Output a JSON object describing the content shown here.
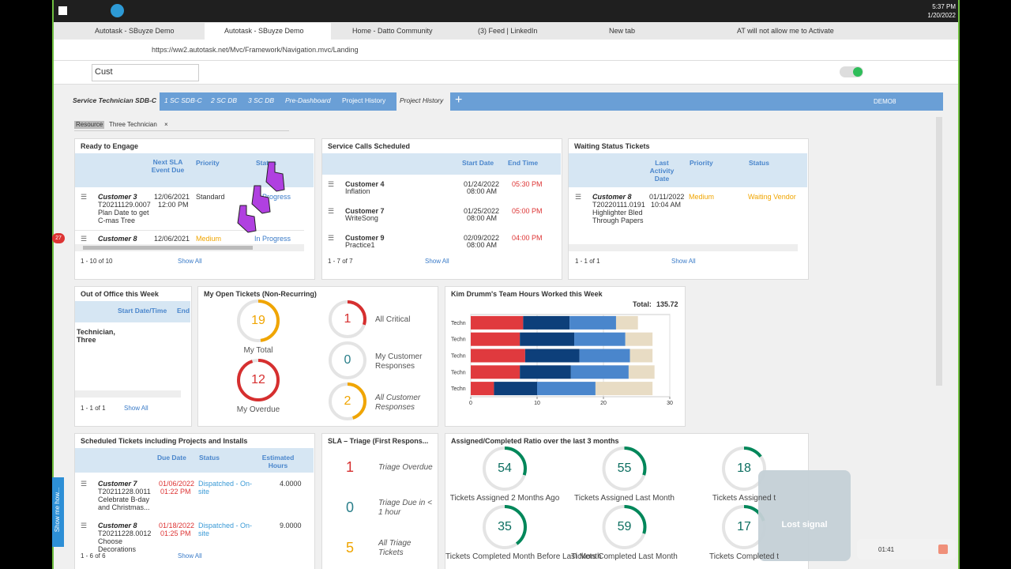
{
  "taskbar": {
    "time": "5:37 PM",
    "date": "1/20/2022"
  },
  "tabs": [
    "Autotask - SBuyze Demo",
    "Autotask - SBuyze Demo",
    "Home - Datto Community",
    "(3) Feed | LinkedIn",
    "New tab",
    "AT will not allow me to Activate"
  ],
  "url": "https://ww2.autotask.net/Mvc/Framework/Navigation.mvc/Landing",
  "search": "Cust",
  "dashboard_tabs": [
    "Service Technician SDB-C",
    "1 SC SDB-C",
    "2 SC DB",
    "3 SC DB",
    "Pre-Dashboard",
    "Project History",
    "Project History"
  ],
  "user": "DEMO8",
  "filter": {
    "label": "Resource",
    "value": "Three Technician"
  },
  "badge": "27",
  "help": "Show me how...",
  "ready": {
    "title": "Ready to Engage",
    "columns": [
      "Next SLA Event Due",
      "Priority",
      "Status"
    ],
    "rows": [
      {
        "customer": "Customer 3",
        "ticket": "T20211129.0007",
        "name": "Plan Date to get C-mas Tree",
        "date": "12/06/2021",
        "time": "12:00 PM",
        "priority": "Standard",
        "status": "In Progress"
      },
      {
        "customer": "Customer 8",
        "date": "12/06/2021",
        "priority": "Medium",
        "status": "In Progress"
      }
    ],
    "count": "1 - 10 of 10",
    "show_all": "Show All"
  },
  "service_calls": {
    "title": "Service Calls Scheduled",
    "columns": [
      "Start Date",
      "End Time"
    ],
    "rows": [
      {
        "customer": "Customer 4",
        "name": "Inflation",
        "date": "01/24/2022",
        "time": "08:00 AM",
        "end": "05:30 PM"
      },
      {
        "customer": "Customer 7",
        "name": "WriteSong",
        "date": "01/25/2022",
        "time": "08:00 AM",
        "end": "05:00 PM"
      },
      {
        "customer": "Customer 9",
        "name": "Practice1",
        "date": "02/09/2022",
        "time": "08:00 AM",
        "end": "04:00 PM"
      }
    ],
    "count": "1 - 7 of 7",
    "show_all": "Show All"
  },
  "waiting": {
    "title": "Waiting Status Tickets",
    "columns": [
      "Last Activity Date",
      "Priority",
      "Status"
    ],
    "rows": [
      {
        "customer": "Customer 8",
        "ticket": "T20220111.0191",
        "name": "Highlighter Bled Through Papers",
        "date": "01/11/2022",
        "time": "10:04 AM",
        "priority": "Medium",
        "status": "Waiting Vendor"
      }
    ],
    "count": "1 - 1 of 1",
    "show_all": "Show All"
  },
  "out_of_office": {
    "title": "Out of Office this Week",
    "columns": [
      "Start Date/Time",
      "End"
    ],
    "rows": [
      "Technician, Three"
    ],
    "count": "1 - 1 of 1",
    "show_all": "Show All"
  },
  "open_tickets": {
    "title": "My Open Tickets (Non-Recurring)",
    "items": [
      {
        "value": "19",
        "label": "My Total"
      },
      {
        "value": "12",
        "label": "My Overdue"
      },
      {
        "value": "1",
        "label": "All Critical"
      },
      {
        "value": "0",
        "label": "My Customer Responses"
      },
      {
        "value": "2",
        "label": "All Customer Responses"
      }
    ]
  },
  "chart_data": {
    "type": "bar",
    "orientation": "horizontal",
    "stacked": true,
    "title": "Kim Drumm's Team Hours Worked this Week",
    "total_label": "Total:",
    "total": 135.72,
    "categories": [
      "Techn",
      "Techn",
      "Techn",
      "Techn",
      "Techn"
    ],
    "series": [
      {
        "color": "#e03a3e",
        "values": [
          7.9,
          7.4,
          8.2,
          7.4,
          3.5
        ]
      },
      {
        "color": "#0d3f7a",
        "values": [
          7.0,
          8.2,
          8.2,
          7.7,
          6.5
        ]
      },
      {
        "color": "#4a86cc",
        "values": [
          7.0,
          7.7,
          7.6,
          8.7,
          8.8
        ]
      },
      {
        "color": "#e8dcc4",
        "values": [
          3.3,
          4.1,
          3.4,
          3.9,
          8.6
        ]
      }
    ],
    "xlim": [
      0,
      30
    ],
    "xticks": [
      0,
      10,
      20,
      30
    ],
    "grid": true
  },
  "scheduled": {
    "title": "Scheduled Tickets including Projects and Installs",
    "columns": [
      "Due Date",
      "Status",
      "Estimated Hours"
    ],
    "rows": [
      {
        "customer": "Customer 7",
        "ticket": "T20211228.0011",
        "name": "Celebrate B-day and Christmas...",
        "date": "01/06/2022",
        "time": "01:22 PM",
        "status": "Dispatched - On-site",
        "hours": "4.0000"
      },
      {
        "customer": "Customer 8",
        "ticket": "T20211228.0012",
        "name": "Choose Decorations",
        "date": "01/18/2022",
        "time": "01:25 PM",
        "status": "Dispatched - On-site",
        "hours": "9.0000"
      }
    ],
    "count": "1 - 6 of 6",
    "show_all": "Show All"
  },
  "sla": {
    "title": "SLA – Triage (First Respons...",
    "items": [
      {
        "value": "1",
        "label": "Triage Overdue"
      },
      {
        "value": "0",
        "label": "Triage Due in < 1 hour"
      },
      {
        "value": "5",
        "label": "All Triage Tickets"
      }
    ]
  },
  "ratio": {
    "title": "Assigned/Completed Ratio over the last 3 months",
    "items": [
      {
        "value": "54",
        "label": "Tickets Assigned 2 Months Ago"
      },
      {
        "value": "55",
        "label": "Tickets Assigned Last Month"
      },
      {
        "value": "18",
        "label": "Tickets Assigned t"
      },
      {
        "value": "35",
        "label": "Tickets Completed Month Before Last Month"
      },
      {
        "value": "59",
        "label": "Tickets Completed Last Month"
      },
      {
        "value": "17",
        "label": "Tickets Completed t"
      }
    ]
  },
  "overlay": {
    "text": "Lost signal",
    "timer": "01:41"
  }
}
